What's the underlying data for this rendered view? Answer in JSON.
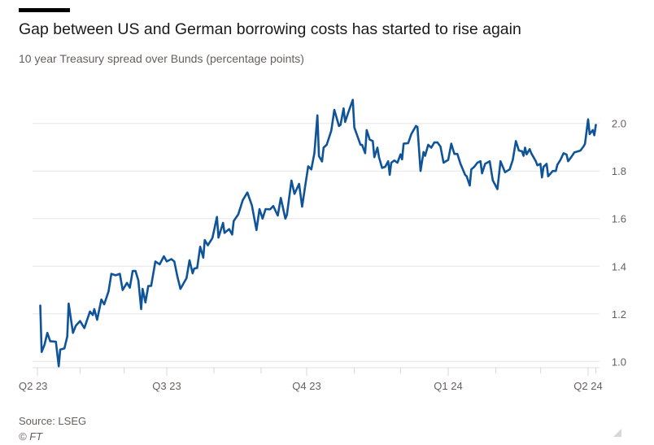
{
  "title": "Gap between US and German borrowing costs has started to rise again",
  "subtitle": "10 year Treasury spread over Bunds (percentage points)",
  "source": "Source: LSEG",
  "copyright": "© FT",
  "chart_data": {
    "type": "line",
    "title": "Gap between US and German borrowing costs has started to rise again",
    "ylabel": "10 year Treasury spread over Bunds (percentage points)",
    "ylim": [
      1.0,
      2.0
    ],
    "yticks": [
      "1.0",
      "1.2",
      "1.4",
      "1.6",
      "1.8",
      "2.0"
    ],
    "y_axis_side": "right",
    "xticks": [
      {
        "label": "Q2 23",
        "date": "2023-04-01"
      },
      {
        "label": "Q3 23",
        "date": "2023-07-01"
      },
      {
        "label": "Q4 23",
        "date": "2023-10-01"
      },
      {
        "label": "Q1 24",
        "date": "2024-01-01"
      },
      {
        "label": "Q2 24",
        "date": "2024-04-01"
      }
    ],
    "grid": "horizontal",
    "line_color": "#0f5499",
    "series": [
      {
        "x": [
          "2023-04-03",
          "2023-04-04",
          "2023-04-06",
          "2023-04-08",
          "2023-04-10",
          "2023-04-14",
          "2023-04-16",
          "2023-04-17",
          "2023-04-20",
          "2023-04-22",
          "2023-04-23",
          "2023-04-26",
          "2023-04-28",
          "2023-05-01",
          "2023-05-04",
          "2023-05-08",
          "2023-05-10",
          "2023-05-11",
          "2023-05-13",
          "2023-05-16",
          "2023-05-18",
          "2023-05-21",
          "2023-05-23",
          "2023-05-26",
          "2023-05-29",
          "2023-05-31",
          "2023-06-03",
          "2023-06-05",
          "2023-06-07",
          "2023-06-09",
          "2023-06-11",
          "2023-06-13",
          "2023-06-14",
          "2023-06-16",
          "2023-06-18",
          "2023-06-20",
          "2023-06-23",
          "2023-06-26",
          "2023-06-29",
          "2023-07-01",
          "2023-07-04",
          "2023-07-06",
          "2023-07-08",
          "2023-07-10",
          "2023-07-14",
          "2023-07-16",
          "2023-07-18",
          "2023-07-19",
          "2023-07-21",
          "2023-07-23",
          "2023-07-25",
          "2023-07-26",
          "2023-07-28",
          "2023-07-31",
          "2023-08-03",
          "2023-08-04",
          "2023-08-07",
          "2023-08-08",
          "2023-08-11",
          "2023-08-13",
          "2023-08-14",
          "2023-08-17",
          "2023-08-20",
          "2023-08-23",
          "2023-08-26",
          "2023-08-29",
          "2023-08-31",
          "2023-09-02",
          "2023-09-04",
          "2023-09-07",
          "2023-09-09",
          "2023-09-12",
          "2023-09-14",
          "2023-09-17",
          "2023-09-18",
          "2023-09-21",
          "2023-09-23",
          "2023-09-26",
          "2023-09-28",
          "2023-09-30",
          "2023-10-02",
          "2023-10-04",
          "2023-10-06",
          "2023-10-08",
          "2023-10-09",
          "2023-10-11",
          "2023-10-12",
          "2023-10-14",
          "2023-10-17",
          "2023-10-19",
          "2023-10-22",
          "2023-10-23",
          "2023-10-25",
          "2023-10-26",
          "2023-10-28",
          "2023-10-31",
          "2023-11-01",
          "2023-11-05",
          "2023-11-06",
          "2023-11-08",
          "2023-11-09",
          "2023-11-11",
          "2023-11-13",
          "2023-11-14",
          "2023-11-16",
          "2023-11-17",
          "2023-11-19",
          "2023-11-21",
          "2023-11-23",
          "2023-11-24",
          "2023-11-25",
          "2023-11-27",
          "2023-11-29",
          "2023-12-01",
          "2023-12-02",
          "2023-12-03",
          "2023-12-06",
          "2023-12-08",
          "2023-12-11",
          "2023-12-12",
          "2023-12-14",
          "2023-12-16",
          "2023-12-17",
          "2023-12-19",
          "2023-12-21",
          "2023-12-23",
          "2023-12-25",
          "2023-12-27",
          "2023-12-29",
          "2024-01-01",
          "2024-01-03",
          "2024-01-05",
          "2024-01-07",
          "2024-01-09",
          "2024-01-12",
          "2024-01-13",
          "2024-01-15",
          "2024-01-16",
          "2024-01-18",
          "2024-01-20",
          "2024-01-22",
          "2024-01-23",
          "2024-01-25",
          "2024-01-28",
          "2024-01-30",
          "2024-02-02",
          "2024-02-04",
          "2024-02-07",
          "2024-02-10",
          "2024-02-12",
          "2024-02-14",
          "2024-02-16",
          "2024-02-18",
          "2024-02-19",
          "2024-02-20",
          "2024-02-21",
          "2024-02-23",
          "2024-02-24",
          "2024-02-27",
          "2024-02-28",
          "2024-03-01",
          "2024-03-02",
          "2024-03-03",
          "2024-03-05",
          "2024-03-06",
          "2024-03-09",
          "2024-03-11",
          "2024-03-12",
          "2024-03-14",
          "2024-03-16",
          "2024-03-18",
          "2024-03-19",
          "2024-03-21",
          "2024-03-23",
          "2024-03-27",
          "2024-03-29",
          "2024-03-30",
          "2024-04-01",
          "2024-04-02",
          "2024-04-04",
          "2024-04-05",
          "2024-04-06"
        ],
        "values": [
          1.235,
          1.04,
          1.07,
          1.12,
          1.085,
          1.083,
          0.98,
          1.05,
          1.055,
          1.105,
          1.243,
          1.12,
          1.15,
          1.17,
          1.14,
          1.21,
          1.195,
          1.22,
          1.175,
          1.26,
          1.24,
          1.294,
          1.368,
          1.362,
          1.368,
          1.3,
          1.33,
          1.31,
          1.38,
          1.38,
          1.34,
          1.22,
          1.305,
          1.248,
          1.317,
          1.317,
          1.42,
          1.408,
          1.442,
          1.42,
          1.43,
          1.42,
          1.356,
          1.305,
          1.35,
          1.425,
          1.37,
          1.39,
          1.393,
          1.482,
          1.436,
          1.51,
          1.488,
          1.518,
          1.607,
          1.52,
          1.582,
          1.54,
          1.556,
          1.533,
          1.59,
          1.618,
          1.678,
          1.71,
          1.655,
          1.552,
          1.64,
          1.6,
          1.64,
          1.639,
          1.653,
          1.613,
          1.687,
          1.6,
          1.616,
          1.76,
          1.704,
          1.746,
          1.65,
          1.735,
          1.82,
          1.807,
          1.875,
          2.034,
          1.863,
          1.84,
          1.898,
          1.91,
          1.97,
          2.057,
          1.989,
          1.994,
          2.063,
          2.006,
          2.045,
          2.099,
          1.983,
          1.91,
          1.91,
          1.875,
          1.972,
          1.932,
          1.926,
          1.858,
          1.898,
          1.858,
          1.813,
          1.818,
          1.841,
          1.784,
          1.835,
          1.844,
          1.835,
          1.87,
          1.849,
          1.915,
          1.917,
          1.955,
          1.989,
          1.985,
          1.8,
          1.88,
          1.864,
          1.91,
          1.898,
          1.92,
          1.92,
          1.903,
          1.835,
          1.847,
          1.915,
          1.872,
          1.872,
          1.83,
          1.784,
          1.778,
          1.739,
          1.807,
          1.818,
          1.835,
          1.841,
          1.79,
          1.83,
          1.841,
          1.761,
          1.724,
          1.841,
          1.795,
          1.807,
          1.847,
          1.926,
          1.886,
          1.883,
          1.864,
          1.898,
          1.87,
          1.892,
          1.875,
          1.841,
          1.824,
          1.83,
          1.773,
          1.818,
          1.83,
          1.778,
          1.8,
          1.8,
          1.826,
          1.847,
          1.875,
          1.869,
          1.841,
          1.858,
          1.878,
          1.886,
          1.903,
          1.915,
          2.017,
          1.955,
          1.972,
          1.95,
          1.994
        ]
      }
    ]
  }
}
